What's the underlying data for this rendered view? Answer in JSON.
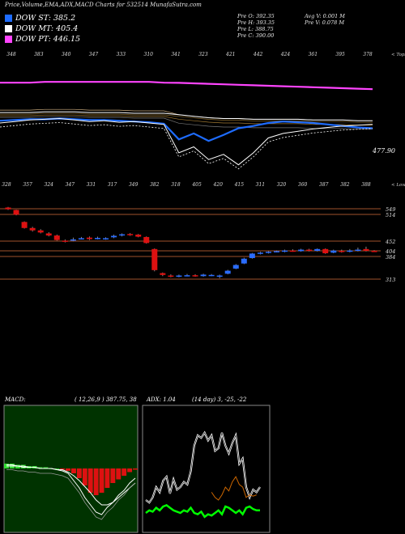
{
  "header": {
    "title": "Price,Volume,EMA,ADX,MACD Charts for 532514 MunafaSutra.com"
  },
  "legend": [
    {
      "label": "DOW ST: 385.2",
      "color": "#1e6cff"
    },
    {
      "label": "DOW MT: 405.4",
      "color": "#ffffff"
    },
    {
      "label": "DOW PT: 446.15",
      "color": "#ff44ff"
    }
  ],
  "ohlc": {
    "col1": [
      "Pre O: 392.35",
      "Pre H: 393.35",
      "Pre L: 388.75",
      "Pre C: 390.00"
    ],
    "col2": [
      "Avg V: 0.001 M",
      "Pre V: 0.078 M"
    ]
  },
  "panel1": {
    "top_ticks": [
      "348",
      "383",
      "340",
      "347",
      "333",
      "310",
      "341",
      "323",
      "421",
      "442",
      "424",
      "361",
      "395",
      "378"
    ],
    "top_tick_x": [
      18,
      50,
      96,
      121,
      144,
      166,
      188,
      211,
      233,
      256,
      288,
      322,
      353,
      385,
      410,
      431
    ],
    "side_label": "< Tops",
    "last_label": "477.90"
  },
  "panel2": {
    "top_ticks": [
      "328",
      "357",
      "324",
      "347",
      "331",
      "317",
      "349",
      "382",
      "318",
      "405",
      "420",
      "415",
      "311",
      "320",
      "360",
      "387",
      "382",
      "388"
    ],
    "side_label": "< Lows",
    "levels": [
      {
        "label": "549",
        "value": 549
      },
      {
        "label": "514",
        "value": 514
      },
      {
        "label": "452",
        "value": 452
      },
      {
        "label": "404",
        "value": 404
      },
      {
        "label": "384",
        "value": 384
      },
      {
        "label": "313",
        "value": 313
      }
    ]
  },
  "macd_panel": {
    "label": "MACD:",
    "params": "( 12,26,9 ) 387.75, 38"
  },
  "adx_panel": {
    "label": "ADX: 1.04",
    "params": "(14 day) 3, -25, -22"
  },
  "colors": {
    "macd_bg": "#003300",
    "up": "#2a6cff",
    "down": "#dd1111",
    "level": "#a0522d",
    "adx_line": "#ffffff",
    "di_plus": "#cc6600",
    "di_minus": "#00ff00",
    "ema_pink": "#ff44ff",
    "ema_blue": "#1e6cff"
  },
  "chart_data": [
    {
      "type": "line",
      "title": "Price and EMA",
      "series": [
        {
          "name": "DOW ST",
          "values": [
            395,
            396,
            397,
            397,
            398,
            397,
            396,
            396,
            395,
            394,
            393,
            391,
            370,
            378,
            368,
            376,
            385,
            388,
            392,
            394,
            393,
            392,
            390,
            388,
            386,
            385
          ]
        },
        {
          "name": "DOW MT",
          "values": [
            406,
            406,
            406,
            407,
            407,
            407,
            406,
            406,
            406,
            405,
            405,
            405,
            403,
            401,
            399,
            398,
            398,
            397,
            397,
            397,
            397,
            396,
            396,
            396,
            395,
            395
          ]
        },
        {
          "name": "DOW PT",
          "values": [
            446,
            446,
            446,
            447,
            447,
            447,
            447,
            447,
            447,
            447,
            447,
            446,
            446,
            446,
            446,
            446,
            446,
            446,
            446,
            446,
            446,
            446,
            446,
            446,
            446,
            446
          ]
        }
      ],
      "last_value": 477.9
    },
    {
      "type": "bar",
      "title": "Candles",
      "candles": [
        {
          "o": 548,
          "c": 542,
          "h": 550,
          "l": 540
        },
        {
          "o": 540,
          "c": 524,
          "h": 541,
          "l": 522
        },
        {
          "o": 500,
          "c": 480,
          "h": 502,
          "l": 478
        },
        {
          "o": 480,
          "c": 472,
          "h": 484,
          "l": 468
        },
        {
          "o": 472,
          "c": 465,
          "h": 476,
          "l": 462
        },
        {
          "o": 462,
          "c": 455,
          "h": 466,
          "l": 452
        },
        {
          "o": 455,
          "c": 440,
          "h": 458,
          "l": 438
        },
        {
          "o": 438,
          "c": 436,
          "h": 442,
          "l": 432
        },
        {
          "o": 438,
          "c": 442,
          "h": 448,
          "l": 436
        },
        {
          "o": 445,
          "c": 446,
          "h": 450,
          "l": 442
        },
        {
          "o": 448,
          "c": 443,
          "h": 452,
          "l": 440
        },
        {
          "o": 445,
          "c": 447,
          "h": 451,
          "l": 442
        },
        {
          "o": 444,
          "c": 446,
          "h": 449,
          "l": 441
        },
        {
          "o": 449,
          "c": 454,
          "h": 458,
          "l": 446
        },
        {
          "o": 455,
          "c": 459,
          "h": 462,
          "l": 452
        },
        {
          "o": 460,
          "c": 457,
          "h": 463,
          "l": 454
        },
        {
          "o": 458,
          "c": 451,
          "h": 460,
          "l": 449
        },
        {
          "o": 450,
          "c": 430,
          "h": 452,
          "l": 428
        },
        {
          "o": 410,
          "c": 340,
          "h": 412,
          "l": 336
        },
        {
          "o": 330,
          "c": 324,
          "h": 332,
          "l": 320
        },
        {
          "o": 322,
          "c": 318,
          "h": 326,
          "l": 316
        },
        {
          "o": 318,
          "c": 322,
          "h": 325,
          "l": 316
        },
        {
          "o": 321,
          "c": 323,
          "h": 327,
          "l": 319
        },
        {
          "o": 323,
          "c": 320,
          "h": 326,
          "l": 318
        },
        {
          "o": 320,
          "c": 325,
          "h": 328,
          "l": 318
        },
        {
          "o": 322,
          "c": 324,
          "h": 327,
          "l": 320
        },
        {
          "o": 318,
          "c": 322,
          "h": 325,
          "l": 313
        },
        {
          "o": 328,
          "c": 338,
          "h": 341,
          "l": 326
        },
        {
          "o": 345,
          "c": 357,
          "h": 360,
          "l": 343
        },
        {
          "o": 362,
          "c": 378,
          "h": 381,
          "l": 360
        },
        {
          "o": 380,
          "c": 395,
          "h": 397,
          "l": 378
        },
        {
          "o": 395,
          "c": 398,
          "h": 401,
          "l": 392
        },
        {
          "o": 398,
          "c": 401,
          "h": 403,
          "l": 395
        },
        {
          "o": 402,
          "c": 403,
          "h": 405,
          "l": 399
        },
        {
          "o": 401,
          "c": 405,
          "h": 408,
          "l": 399
        },
        {
          "o": 405,
          "c": 403,
          "h": 409,
          "l": 401
        },
        {
          "o": 403,
          "c": 408,
          "h": 411,
          "l": 401
        },
        {
          "o": 408,
          "c": 405,
          "h": 411,
          "l": 402
        },
        {
          "o": 404,
          "c": 410,
          "h": 412,
          "l": 402
        },
        {
          "o": 410,
          "c": 396,
          "h": 412,
          "l": 394
        },
        {
          "o": 398,
          "c": 405,
          "h": 408,
          "l": 396
        },
        {
          "o": 404,
          "c": 402,
          "h": 408,
          "l": 398
        },
        {
          "o": 401,
          "c": 405,
          "h": 410,
          "l": 399
        },
        {
          "o": 404,
          "c": 408,
          "h": 415,
          "l": 402
        },
        {
          "o": 410,
          "c": 404,
          "h": 418,
          "l": 402
        },
        {
          "o": 404,
          "c": 402,
          "h": 406,
          "l": 400
        }
      ]
    },
    {
      "type": "bar",
      "title": "MACD",
      "histogram": [
        4,
        4,
        3,
        3,
        2,
        2,
        1,
        1,
        0,
        0,
        -1,
        -2,
        -4,
        -8,
        -14,
        -20,
        -22,
        -20,
        -16,
        -12,
        -9,
        -6,
        -3,
        -1
      ],
      "macd": [
        3,
        3,
        2,
        2,
        1,
        1,
        0,
        0,
        0,
        -1,
        -2,
        -4,
        -10,
        -16,
        -24,
        -30,
        -36,
        -38,
        -32,
        -28,
        -22,
        -18,
        -12,
        -8
      ],
      "signal": [
        2,
        2,
        2,
        1,
        1,
        1,
        0,
        0,
        0,
        -1,
        -1,
        -3,
        -6,
        -10,
        -15,
        -20,
        -26,
        -30,
        -30,
        -28,
        -24,
        -20,
        -16,
        -12
      ]
    },
    {
      "type": "line",
      "title": "ADX",
      "series": [
        {
          "name": "ADX",
          "values": [
            20,
            18,
            22,
            30,
            26,
            35,
            38,
            25,
            36,
            28,
            30,
            34,
            32,
            42,
            62,
            70,
            68,
            72,
            66,
            70,
            58,
            60,
            72,
            62,
            56,
            64,
            70,
            48,
            52,
            30,
            22,
            28,
            26,
            30
          ]
        },
        {
          "name": "+DI",
          "values": [
            null,
            null,
            null,
            null,
            null,
            null,
            null,
            null,
            null,
            null,
            null,
            null,
            null,
            null,
            null,
            null,
            null,
            null,
            null,
            26,
            22,
            20,
            24,
            30,
            27,
            34,
            38,
            32,
            30,
            22,
            24,
            23,
            24,
            null
          ]
        },
        {
          "name": "-DI",
          "values": [
            10,
            12,
            11,
            14,
            12,
            15,
            16,
            14,
            12,
            11,
            10,
            12,
            11,
            14,
            10,
            9,
            11,
            7,
            9,
            8,
            10,
            12,
            9,
            15,
            14,
            12,
            10,
            12,
            9,
            14,
            15,
            13,
            12,
            12
          ]
        }
      ]
    }
  ]
}
